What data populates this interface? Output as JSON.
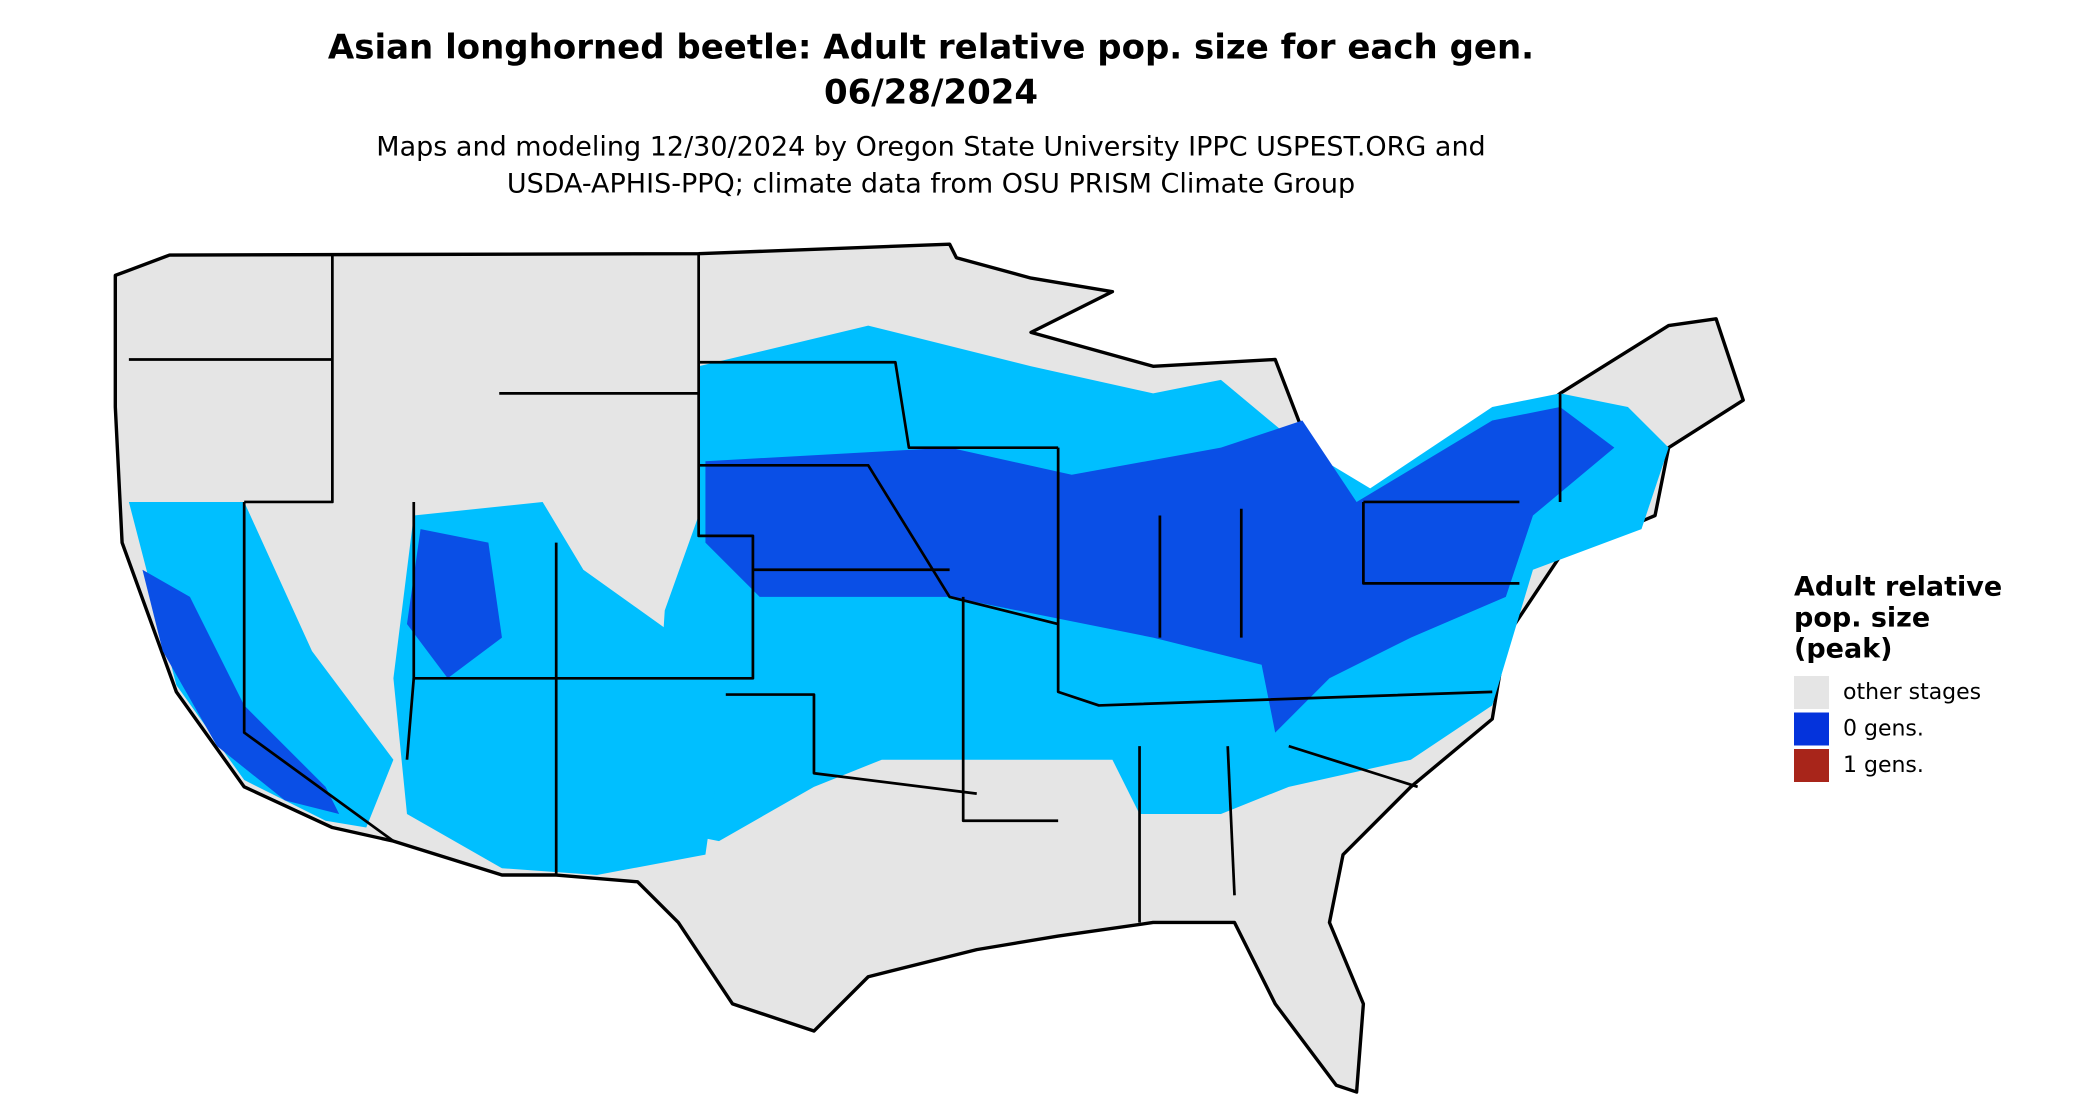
{
  "title": [
    "Asian longhorned beetle: Adult relative pop. size for each gen.",
    "06/28/2024"
  ],
  "subtitle": [
    "Maps and modeling 12/30/2024 by Oregon State University IPPC USPEST.ORG and",
    "USDA-APHIS-PPQ; climate data from OSU PRISM Climate Group"
  ],
  "legend": {
    "title": [
      "Adult relative",
      "pop. size",
      "(peak)"
    ],
    "items": [
      {
        "label": "other stages",
        "color": "#e5e5e5"
      },
      {
        "label": "0 gens.",
        "color": "#0433dc"
      },
      {
        "label": "1 gens.",
        "color": "#a8251a"
      }
    ]
  }
}
